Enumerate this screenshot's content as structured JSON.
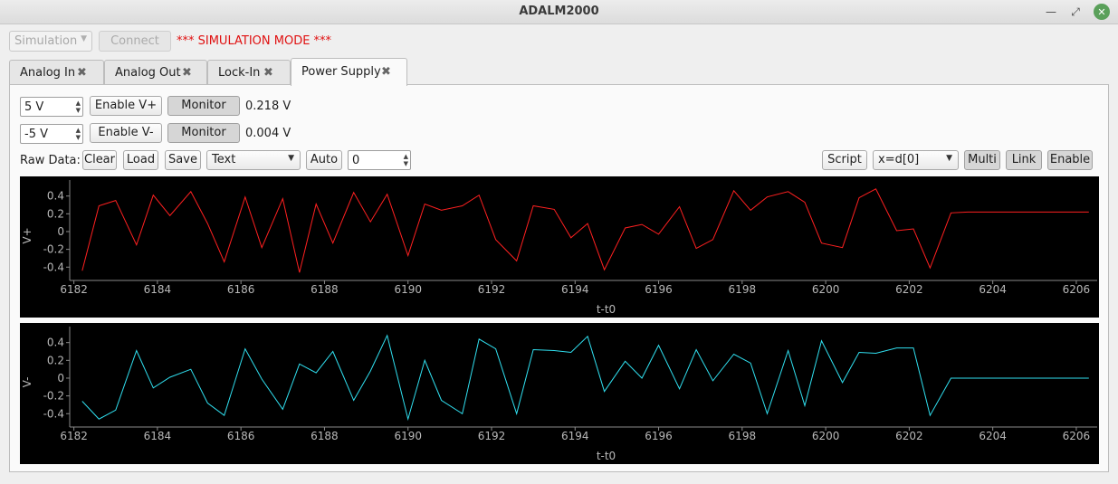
{
  "window": {
    "title": "ADALM2000"
  },
  "toolbar": {
    "mode_select": "Simulation",
    "connect_label": "Connect",
    "sim_mode_text": "*** SIMULATION MODE ***"
  },
  "tabs": [
    {
      "label": "Analog In"
    },
    {
      "label": "Analog Out"
    },
    {
      "label": "Lock-In"
    },
    {
      "label": "Power Supply",
      "active": true
    }
  ],
  "supply": {
    "pos": {
      "setpoint": "5 V",
      "enable_label": "Enable V+",
      "monitor_label": "Monitor",
      "reading": "0.218 V"
    },
    "neg": {
      "setpoint": "-5 V",
      "enable_label": "Enable V-",
      "monitor_label": "Monitor",
      "reading": "0.004 V"
    }
  },
  "rawdata": {
    "label": "Raw Data:",
    "clear": "Clear",
    "load": "Load",
    "save": "Save",
    "format": "Text",
    "auto": "Auto",
    "count": "0",
    "script": "Script",
    "expression": "x=d[0]",
    "multi": "Multi",
    "link": "Link",
    "enable": "Enable"
  },
  "chart_data": [
    {
      "type": "line",
      "xlabel": "t-t0",
      "ylabel": "V+",
      "xlim": [
        6181.9,
        6206.5
      ],
      "ylim": [
        -0.55,
        0.58
      ],
      "xticks": [
        "6182",
        "6184",
        "6186",
        "6188",
        "6190",
        "6192",
        "6194",
        "6196",
        "6198",
        "6200",
        "6202",
        "6204",
        "6206"
      ],
      "yticks": [
        "0.4",
        "0.2",
        "0",
        "-0.2",
        "-0.4"
      ],
      "series": [
        {
          "color": "#ff2020",
          "x": [
            6182.2,
            6182.6,
            6183.0,
            6183.5,
            6183.9,
            6184.3,
            6184.8,
            6185.2,
            6185.6,
            6186.1,
            6186.5,
            6187.0,
            6187.4,
            6187.8,
            6188.2,
            6188.7,
            6189.1,
            6189.5,
            6190.0,
            6190.4,
            6190.8,
            6191.3,
            6191.7,
            6192.1,
            6192.6,
            6193.0,
            6193.5,
            6193.9,
            6194.3,
            6194.7,
            6195.2,
            6195.6,
            6196.0,
            6196.5,
            6196.9,
            6197.3,
            6197.8,
            6198.2,
            6198.6,
            6199.1,
            6199.5,
            6199.9,
            6200.4,
            6200.8,
            6201.2,
            6201.7,
            6202.1,
            6202.5,
            6203.0,
            6203.4,
            6203.8,
            6204.3,
            6204.7,
            6205.1,
            6205.6,
            6206.0,
            6206.3
          ],
          "values": [
            -0.44,
            0.29,
            0.35,
            -0.15,
            0.41,
            0.18,
            0.45,
            0.09,
            -0.34,
            0.39,
            -0.18,
            0.37,
            -0.46,
            0.31,
            -0.13,
            0.44,
            0.11,
            0.42,
            -0.27,
            0.31,
            0.24,
            0.29,
            0.41,
            -0.09,
            -0.33,
            0.29,
            0.25,
            -0.07,
            0.09,
            -0.43,
            0.04,
            0.08,
            -0.03,
            0.28,
            -0.19,
            -0.09,
            0.46,
            0.24,
            0.39,
            0.45,
            0.33,
            -0.13,
            -0.18,
            0.38,
            0.48,
            0.01,
            0.03,
            -0.41,
            0.21,
            0.22,
            0.22,
            0.22,
            0.22,
            0.22,
            0.22,
            0.22,
            0.22
          ]
        }
      ]
    },
    {
      "type": "line",
      "xlabel": "t-t0",
      "ylabel": "V-",
      "xlim": [
        6181.9,
        6206.5
      ],
      "ylim": [
        -0.55,
        0.58
      ],
      "xticks": [
        "6182",
        "6184",
        "6186",
        "6188",
        "6190",
        "6192",
        "6194",
        "6196",
        "6198",
        "6200",
        "6202",
        "6204",
        "6206"
      ],
      "yticks": [
        "0.4",
        "0.2",
        "0",
        "-0.2",
        "-0.4"
      ],
      "series": [
        {
          "color": "#30e0f0",
          "x": [
            6182.2,
            6182.6,
            6183.0,
            6183.5,
            6183.9,
            6184.3,
            6184.8,
            6185.2,
            6185.6,
            6186.1,
            6186.5,
            6187.0,
            6187.4,
            6187.8,
            6188.2,
            6188.7,
            6189.1,
            6189.5,
            6190.0,
            6190.4,
            6190.8,
            6191.3,
            6191.7,
            6192.1,
            6192.6,
            6193.0,
            6193.5,
            6193.9,
            6194.3,
            6194.7,
            6195.2,
            6195.6,
            6196.0,
            6196.5,
            6196.9,
            6197.3,
            6197.8,
            6198.2,
            6198.6,
            6199.1,
            6199.5,
            6199.9,
            6200.4,
            6200.8,
            6201.2,
            6201.7,
            6202.1,
            6202.5,
            6203.0,
            6203.4,
            6203.8,
            6204.3,
            6204.7,
            6205.1,
            6205.6,
            6206.0,
            6206.3
          ],
          "values": [
            -0.26,
            -0.46,
            -0.36,
            0.31,
            -0.11,
            0.01,
            0.1,
            -0.28,
            -0.42,
            0.33,
            -0.01,
            -0.35,
            0.16,
            0.06,
            0.3,
            -0.25,
            0.08,
            0.48,
            -0.46,
            0.2,
            -0.25,
            -0.4,
            0.44,
            0.33,
            -0.4,
            0.32,
            0.31,
            0.29,
            0.47,
            -0.15,
            0.19,
            0.0,
            0.37,
            -0.12,
            0.32,
            -0.03,
            0.27,
            0.17,
            -0.4,
            0.31,
            -0.31,
            0.42,
            -0.05,
            0.29,
            0.28,
            0.34,
            0.34,
            -0.42,
            0.0,
            0.0,
            0.0,
            0.0,
            0.0,
            0.0,
            0.0,
            0.0,
            0.0
          ]
        }
      ]
    }
  ]
}
